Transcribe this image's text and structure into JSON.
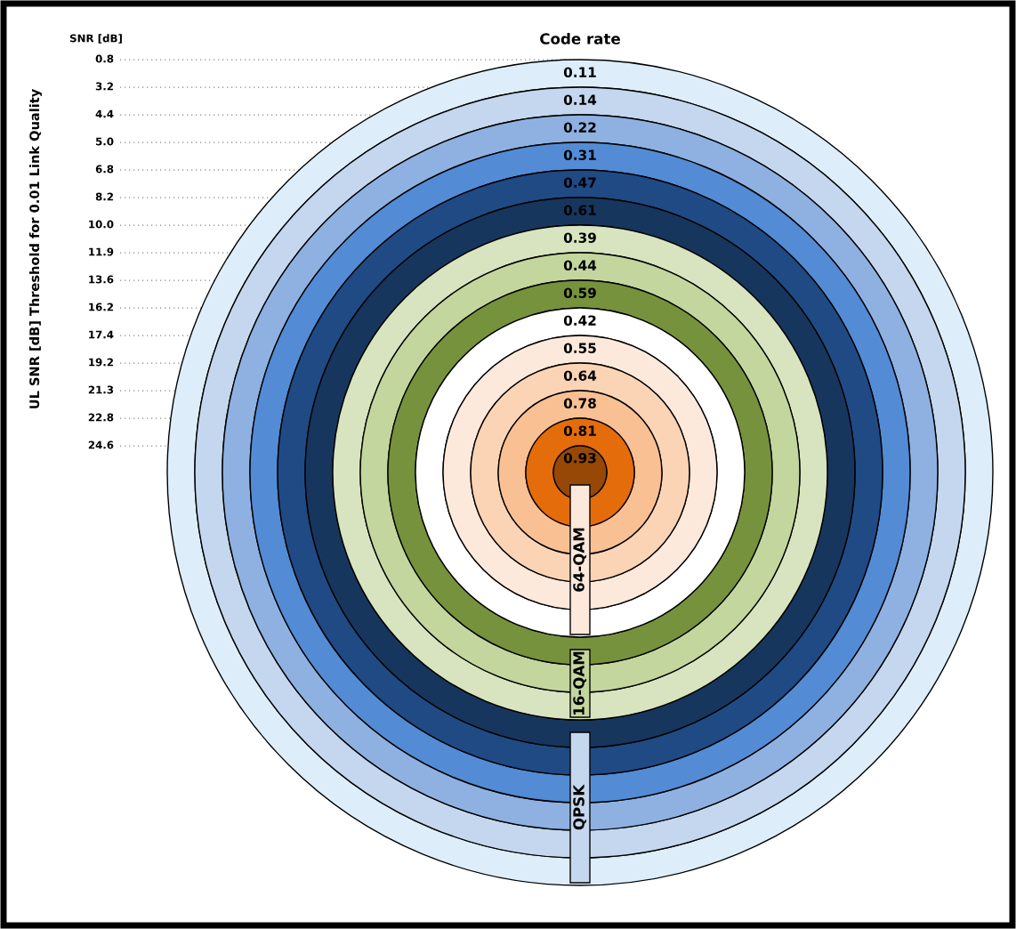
{
  "chart_data": {
    "type": "other",
    "title": "Code rate",
    "ylabel": "UL SNR [dB] Threshold for 0.01 Link Quality",
    "annotations": [
      "SNR [dB]"
    ],
    "categories": [
      "0.8",
      "3.2",
      "4.4",
      "5.0",
      "6.8",
      "8.2",
      "10.0",
      "11.9",
      "13.6",
      "16.2",
      "17.4",
      "19.2",
      "21.3",
      "22.8",
      "24.6"
    ],
    "data_labels": true,
    "series": [
      {
        "name": "QPSK",
        "values": [
          0.11,
          0.14,
          0.22,
          0.31,
          0.47,
          0.61,
          null,
          null,
          null,
          null,
          null,
          null,
          null,
          null,
          null
        ],
        "colors": [
          "#ddeefa",
          "#c5d7ee",
          "#8eb1e2",
          "#538bd5",
          "#204a84",
          "#17365e",
          null,
          null,
          null,
          null,
          null,
          null,
          null,
          null,
          null
        ]
      },
      {
        "name": "16-QAM",
        "values": [
          null,
          null,
          null,
          null,
          null,
          null,
          0.39,
          0.44,
          0.59,
          null,
          null,
          null,
          null,
          null,
          null
        ],
        "colors": [
          null,
          null,
          null,
          null,
          null,
          null,
          "#d8e4bf",
          "#c3d69e",
          "#76923c",
          null,
          null,
          null,
          null,
          null,
          null
        ]
      },
      {
        "name": "64-QAM",
        "values": [
          null,
          null,
          null,
          null,
          null,
          null,
          null,
          null,
          null,
          0.42,
          0.55,
          0.64,
          0.78,
          0.81,
          0.93
        ],
        "colors": [
          null,
          null,
          null,
          null,
          null,
          null,
          null,
          null,
          null,
          "#ffffff",
          "#fde9db",
          "#fbd4b6",
          "#f9c093",
          "#e46c0a",
          "#974806"
        ]
      }
    ]
  }
}
